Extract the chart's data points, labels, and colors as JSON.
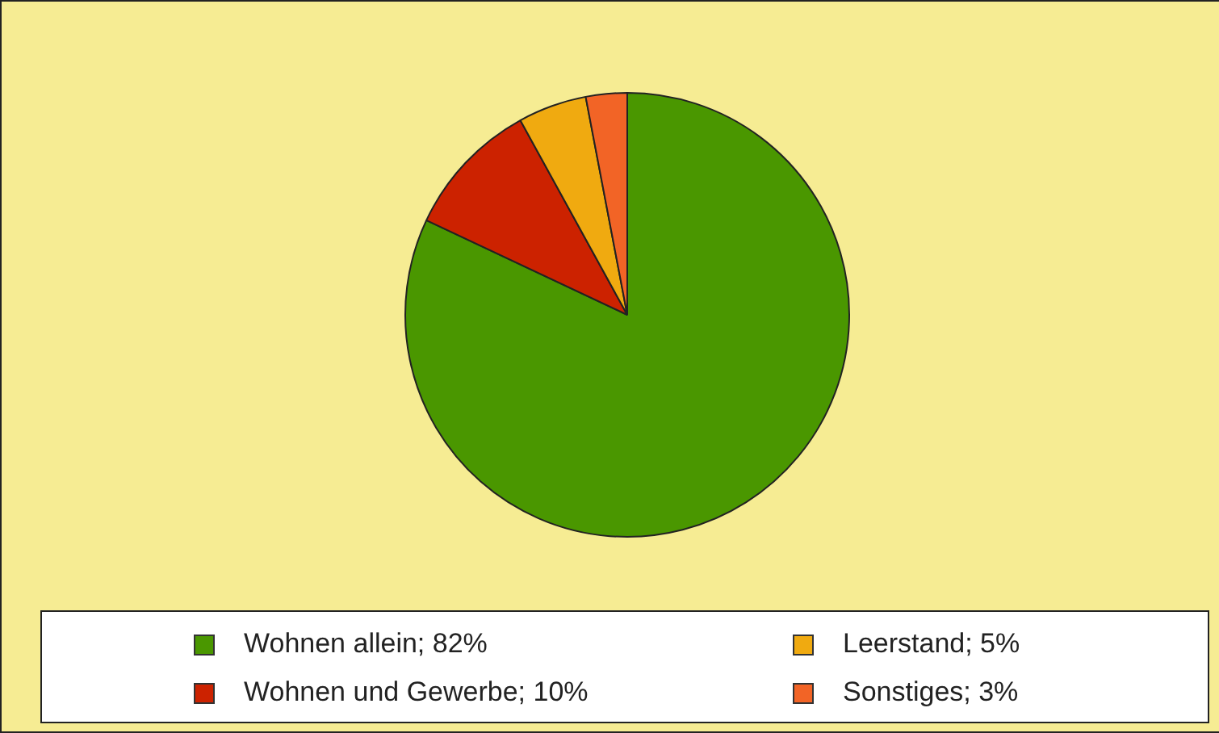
{
  "chart_data": {
    "type": "pie",
    "categories": [
      "Wohnen allein; 82%",
      "Wohnen und Gewerbe; 10%",
      "Leerstand; 5%",
      "Sonstiges; 3%"
    ],
    "values": [
      82,
      10,
      5,
      3
    ],
    "colors": [
      "#4a9700",
      "#cc2200",
      "#f0aa10",
      "#f26426"
    ],
    "legend": "bottom"
  }
}
